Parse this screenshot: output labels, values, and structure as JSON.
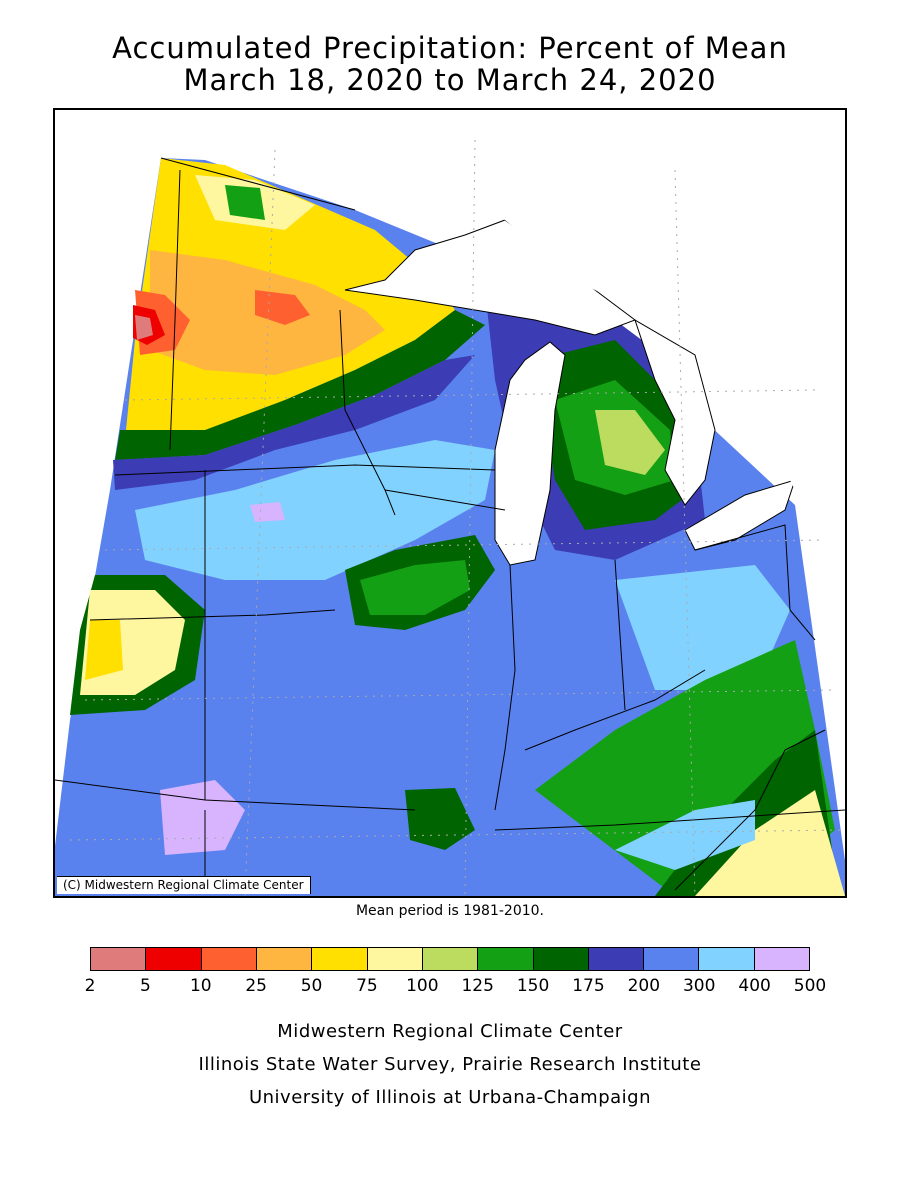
{
  "title": {
    "line1": "Accumulated Precipitation: Percent of Mean",
    "line2": "March 18, 2020 to March 24, 2020"
  },
  "map": {
    "copyright": "(C) Midwestern Regional Climate Center"
  },
  "mean_period": "Mean period is 1981-2010.",
  "legend": {
    "bins": [
      {
        "color": "#e07b7b"
      },
      {
        "color": "#ee0000"
      },
      {
        "color": "#ff6030"
      },
      {
        "color": "#ffb640"
      },
      {
        "color": "#ffe000"
      },
      {
        "color": "#fff6a0"
      },
      {
        "color": "#bcdc60"
      },
      {
        "color": "#14a014"
      },
      {
        "color": "#006400"
      },
      {
        "color": "#3c3cb4"
      },
      {
        "color": "#5a82ee"
      },
      {
        "color": "#82d2ff"
      },
      {
        "color": "#d8b4ff"
      }
    ],
    "labels": [
      "2",
      "5",
      "10",
      "25",
      "50",
      "75",
      "100",
      "125",
      "150",
      "175",
      "200",
      "300",
      "400",
      "500"
    ]
  },
  "credits": {
    "line1": "Midwestern Regional Climate Center",
    "line2": "Illinois State Water Survey, Prairie Research Institute",
    "line3": "University of Illinois at Urbana-Champaign"
  }
}
